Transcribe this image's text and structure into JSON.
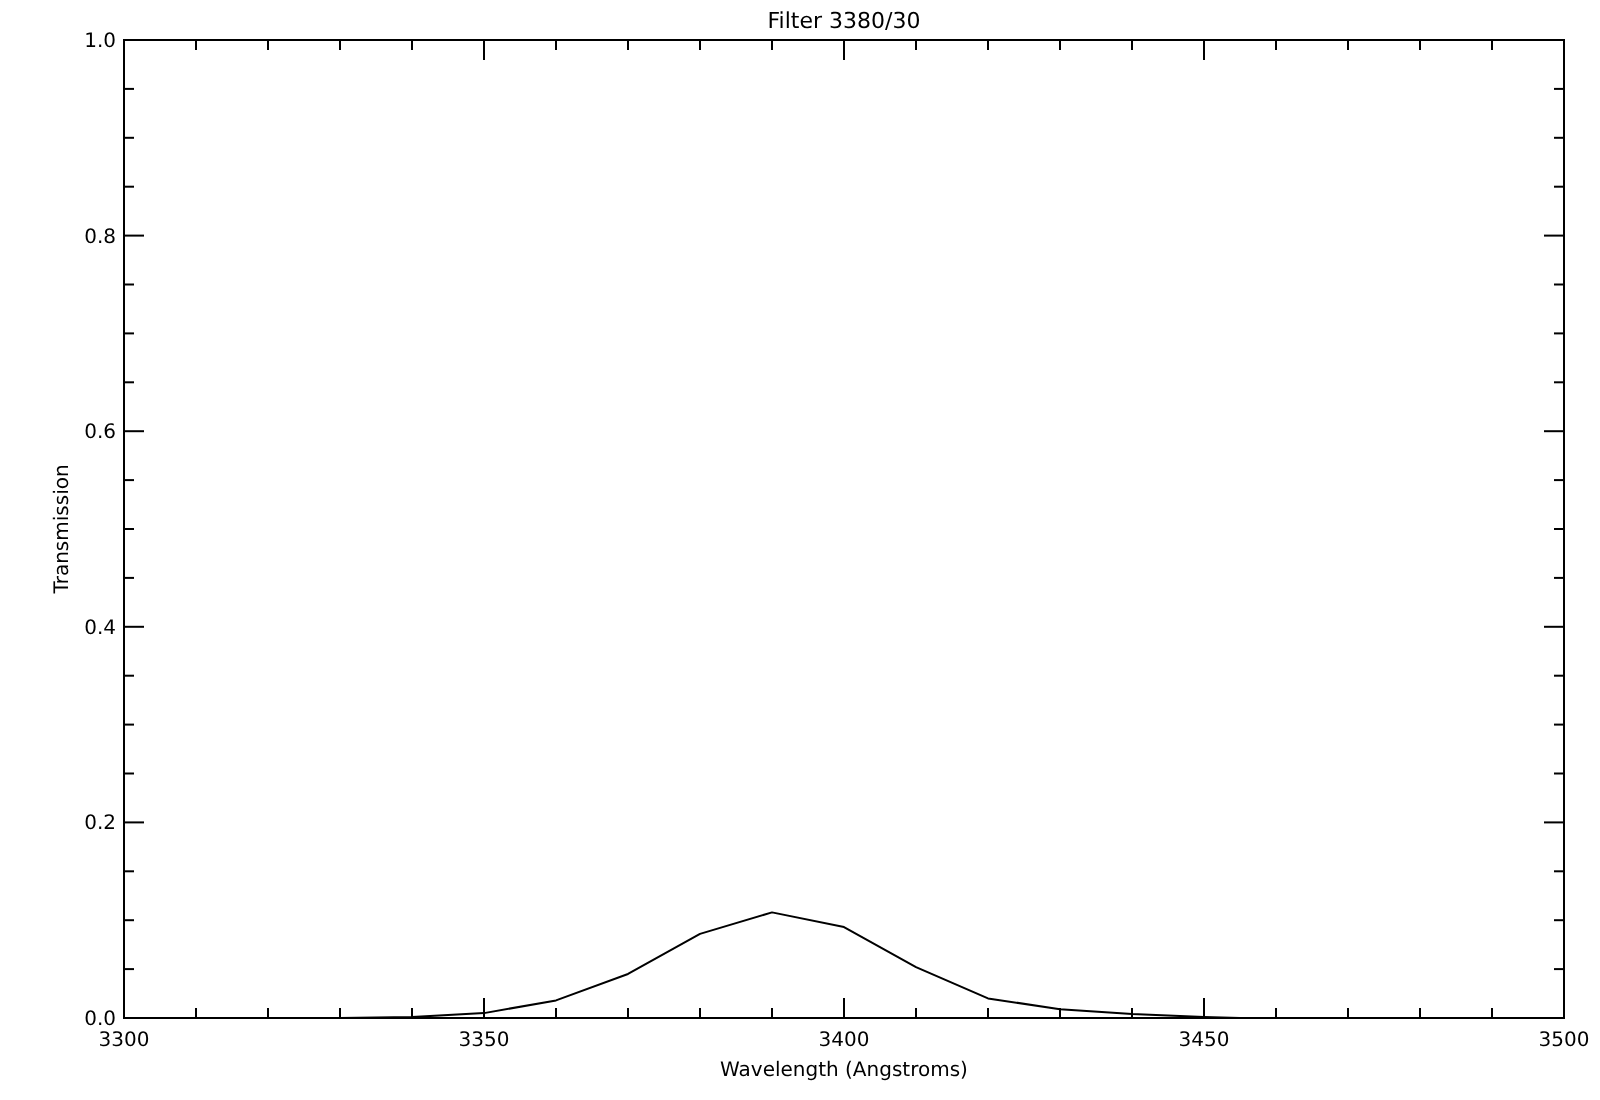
{
  "chart_data": {
    "type": "line",
    "title": "Filter 3380/30",
    "xlabel": "Wavelength (Angstroms)",
    "ylabel": "Transmission",
    "x": [
      3325,
      3330,
      3340,
      3350,
      3360,
      3370,
      3380,
      3390,
      3400,
      3410,
      3420,
      3430,
      3440,
      3450,
      3455
    ],
    "series": [
      {
        "color": "#000000",
        "values": [
          0,
          0,
          0.001,
          0.005,
          0.018,
          0.045,
          0.086,
          0.108,
          0.093,
          0.052,
          0.02,
          0.009,
          0.004,
          0.001,
          0
        ]
      }
    ],
    "xlim": [
      3300,
      3500
    ],
    "ylim": [
      0,
      1
    ],
    "xticks": [
      3300,
      {
        "value": 3310,
        "label": null
      },
      {
        "value": 3320,
        "label": null
      },
      {
        "value": 3330,
        "label": null
      },
      {
        "value": 3340,
        "label": null
      },
      3350,
      {
        "value": 3360,
        "label": null
      },
      {
        "value": 3370,
        "label": null
      },
      {
        "value": 3380,
        "label": null
      },
      {
        "value": 3390,
        "label": null
      },
      3400,
      {
        "value": 3410,
        "label": null
      },
      {
        "value": 3420,
        "label": null
      },
      {
        "value": 3430,
        "label": null
      },
      {
        "value": 3440,
        "label": null
      },
      3450,
      {
        "value": 3460,
        "label": null
      },
      {
        "value": 3470,
        "label": null
      },
      {
        "value": 3480,
        "label": null
      },
      {
        "value": 3490,
        "label": null
      },
      3500
    ],
    "yticks": [
      {
        "value": 0,
        "label": "0.0"
      },
      {
        "value": 0.05,
        "label": null
      },
      {
        "value": 0.1,
        "label": null
      },
      {
        "value": 0.15,
        "label": null
      },
      {
        "value": 0.2,
        "label": "0.2"
      },
      {
        "value": 0.25,
        "label": null
      },
      {
        "value": 0.3,
        "label": null
      },
      {
        "value": 0.35,
        "label": null
      },
      {
        "value": 0.4,
        "label": "0.4"
      },
      {
        "value": 0.45,
        "label": null
      },
      {
        "value": 0.5,
        "label": null
      },
      {
        "value": 0.55,
        "label": null
      },
      {
        "value": 0.6,
        "label": "0.6"
      },
      {
        "value": 0.65,
        "label": null
      },
      {
        "value": 0.7,
        "label": null
      },
      {
        "value": 0.75,
        "label": null
      },
      {
        "value": 0.8,
        "label": "0.8"
      },
      {
        "value": 0.85,
        "label": null
      },
      {
        "value": 0.9,
        "label": null
      },
      {
        "value": 0.95,
        "label": null
      },
      {
        "value": 1,
        "label": "1.0"
      }
    ],
    "grid": false,
    "marker": "none",
    "line_style": "solid"
  }
}
